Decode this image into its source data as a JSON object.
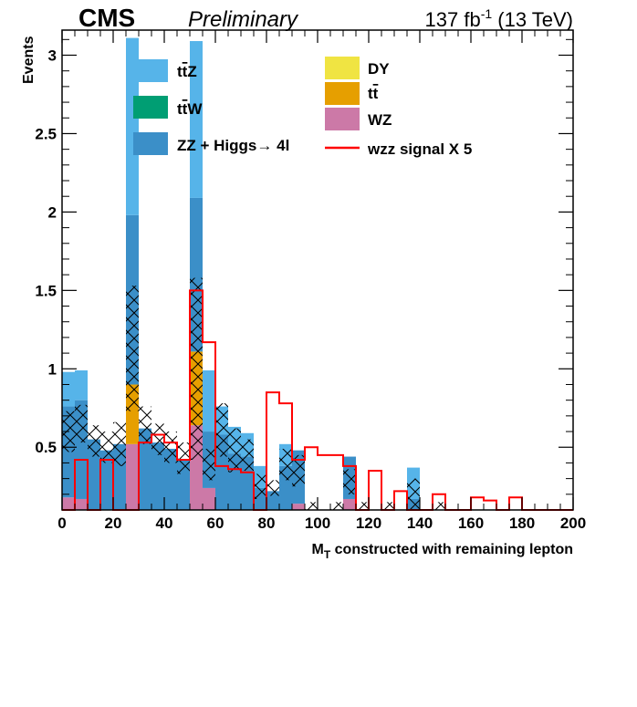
{
  "header": {
    "experiment": "CMS",
    "status": "Preliminary",
    "lumi_base": "137 fb",
    "lumi_sup": "-1",
    "lumi_tail": " (13 TeV)"
  },
  "chart_data": {
    "type": "bar",
    "subtype": "stacked-histogram",
    "xlabel_main": "M",
    "xlabel_sub": "T",
    "xlabel_rest": " constructed with remaining lepton",
    "ylabel": "Events",
    "xlim": [
      0,
      200
    ],
    "ylim": [
      0.1,
      3.16
    ],
    "bin_width": 5,
    "x_ticks": [
      0,
      20,
      40,
      60,
      80,
      100,
      120,
      140,
      160,
      180,
      200
    ],
    "y_ticks": [
      0.5,
      1,
      1.5,
      2,
      2.5,
      3
    ],
    "bin_edges": [
      0,
      5,
      10,
      15,
      20,
      25,
      30,
      35,
      40,
      45,
      50,
      55,
      60,
      65,
      70,
      75,
      80,
      85,
      90,
      95,
      100,
      105,
      110,
      115,
      120,
      125,
      130,
      135,
      140,
      145,
      150,
      155,
      160,
      165,
      170,
      175,
      180,
      185,
      190,
      195,
      200
    ],
    "stack_order": [
      "WZ",
      "tt",
      "DY",
      "ZZ + Higgs",
      "ttW",
      "ttZ"
    ],
    "series": [
      {
        "name": "WZ",
        "color": "#cc79a7",
        "values": [
          0.18,
          0.17,
          0,
          0,
          0,
          0.52,
          0,
          0,
          0,
          0,
          0.64,
          0.24,
          0,
          0,
          0,
          0,
          0,
          0,
          0.14,
          0,
          0,
          0,
          0.17,
          0,
          0,
          0,
          0,
          0,
          0,
          0,
          0,
          0,
          0,
          0,
          0,
          0,
          0,
          0,
          0,
          0
        ]
      },
      {
        "name": "tt",
        "color": "#e69f00",
        "values": [
          0,
          0,
          0,
          0,
          0,
          0.38,
          0,
          0,
          0,
          0,
          0.47,
          0,
          0,
          0,
          0,
          0,
          0,
          0,
          0,
          0,
          0,
          0,
          0,
          0,
          0,
          0,
          0,
          0,
          0,
          0,
          0,
          0,
          0,
          0,
          0,
          0,
          0,
          0,
          0,
          0
        ]
      },
      {
        "name": "DY",
        "color": "#f0e442",
        "values": [
          0,
          0,
          0,
          0,
          0,
          0,
          0,
          0,
          0,
          0,
          0,
          0,
          0,
          0,
          0,
          0,
          0,
          0,
          0,
          0,
          0,
          0,
          0,
          0,
          0,
          0,
          0,
          0,
          0,
          0,
          0,
          0,
          0,
          0,
          0,
          0,
          0,
          0,
          0,
          0
        ]
      },
      {
        "name": "ZZ + Higgs",
        "color": "#3b8fc8",
        "values": [
          0.58,
          0.63,
          0.55,
          0.48,
          0.52,
          1.08,
          0.62,
          0.53,
          0.49,
          0.42,
          0.98,
          0.36,
          0.58,
          0.46,
          0.44,
          0.24,
          0.22,
          0.38,
          0.34,
          0,
          0,
          0.1,
          0.27,
          0.1,
          0,
          0.1,
          0,
          0.17,
          0,
          0.1,
          0,
          0,
          0,
          0,
          0,
          0,
          0,
          0,
          0,
          0
        ]
      },
      {
        "name": "ttW",
        "color": "#009e73",
        "values": [
          0,
          0,
          0,
          0,
          0,
          0,
          0,
          0,
          0,
          0,
          0,
          0,
          0,
          0,
          0,
          0,
          0,
          0,
          0,
          0,
          0,
          0,
          0,
          0,
          0,
          0,
          0,
          0,
          0,
          0,
          0,
          0,
          0,
          0,
          0,
          0,
          0,
          0,
          0,
          0
        ]
      },
      {
        "name": "ttZ",
        "color": "#56b4e9",
        "values": [
          0.22,
          0.19,
          0,
          0,
          0,
          1.13,
          0,
          0,
          0,
          0,
          1.0,
          0.39,
          0.18,
          0.17,
          0.15,
          0.14,
          0,
          0.14,
          0,
          0,
          0,
          0,
          0,
          0,
          0,
          0,
          0,
          0.2,
          0,
          0,
          0,
          0,
          0,
          0,
          0,
          0,
          0,
          0,
          0,
          0
        ]
      }
    ],
    "totals": [
      0.6,
      0.65,
      0.54,
      0.5,
      0.52,
      1.13,
      0.64,
      0.55,
      0.5,
      0.43,
      1.0,
      0.39,
      0.61,
      0.48,
      0.45,
      0.25,
      0.24,
      0.39,
      0.35,
      0.1,
      0,
      0.1,
      0.28,
      0.1,
      0,
      0.1,
      0,
      0.2,
      0,
      0.1,
      0,
      0,
      0,
      0,
      0,
      0,
      0,
      0,
      0,
      0
    ],
    "uncertainty": [
      0.13,
      0.12,
      0.1,
      0.1,
      0.14,
      0.4,
      0.12,
      0.1,
      0.1,
      0.1,
      0.58,
      0.1,
      0.17,
      0.14,
      0.1,
      0.08,
      0.05,
      0.1,
      0.1,
      0.05,
      0,
      0.05,
      0.08,
      0.05,
      0,
      0.05,
      0,
      0.1,
      0,
      0.05,
      0,
      0,
      0,
      0,
      0,
      0,
      0,
      0,
      0,
      0
    ],
    "signal": {
      "name": "wzz signal X 5",
      "color": "#ff0000",
      "values": [
        0.1,
        0.42,
        0.1,
        0.42,
        0.1,
        0.1,
        0.53,
        0.58,
        0.53,
        0.42,
        1.5,
        1.17,
        0.38,
        0.36,
        0.34,
        0.1,
        0.85,
        0.78,
        0.42,
        0.5,
        0.45,
        0.45,
        0.38,
        0.1,
        0.35,
        0.1,
        0.22,
        0.1,
        0.1,
        0.2,
        0.1,
        0.1,
        0.18,
        0.16,
        0.1,
        0.18,
        0.1,
        0.1,
        0.1,
        0.1
      ]
    },
    "legend": {
      "placement": "top",
      "left": [
        {
          "label": "ttZ",
          "color": "#56b4e9",
          "kind": "box"
        },
        {
          "label": "ttW",
          "color": "#009e73",
          "kind": "box"
        },
        {
          "label": "ZZ + Higgs",
          "suffix": "4l",
          "color": "#3b8fc8",
          "kind": "box"
        }
      ],
      "right": [
        {
          "label": "DY",
          "color": "#f0e442",
          "kind": "box"
        },
        {
          "label": "tt",
          "color": "#e69f00",
          "kind": "box"
        },
        {
          "label": "WZ",
          "color": "#cc79a7",
          "kind": "box"
        },
        {
          "label": "wzz signal X 5",
          "color": "#ff0000",
          "kind": "line"
        }
      ]
    }
  }
}
